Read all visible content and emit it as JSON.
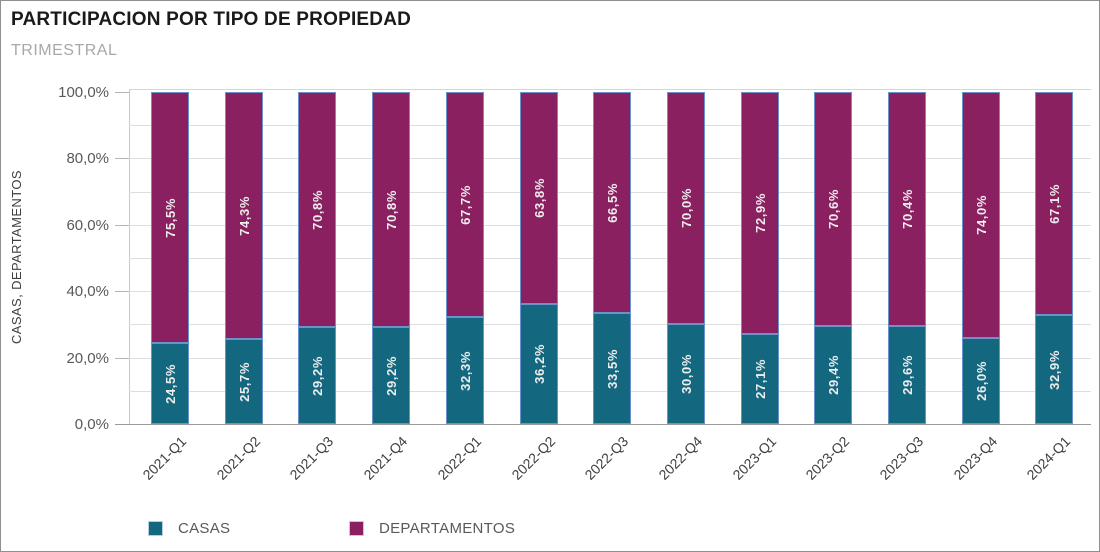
{
  "header": {
    "title": "PARTICIPACION POR TIPO DE PROPIEDAD",
    "subtitle": "TRIMESTRAL"
  },
  "chart_data": {
    "type": "bar",
    "stacked": true,
    "title": "PARTICIPACION POR TIPO DE PROPIEDAD",
    "subtitle": "TRIMESTRAL",
    "xlabel": "",
    "ylabel": "CASAS, DEPARTAMENTOS",
    "ylim": [
      0,
      100
    ],
    "grid": true,
    "legend_position": "bottom",
    "categories": [
      "2021-Q1",
      "2021-Q2",
      "2021-Q3",
      "2021-Q4",
      "2022-Q1",
      "2022-Q2",
      "2022-Q3",
      "2022-Q4",
      "2023-Q1",
      "2023-Q2",
      "2023-Q3",
      "2023-Q4",
      "2024-Q1"
    ],
    "series": [
      {
        "name": "CASAS",
        "color": "#136880",
        "values": [
          24.5,
          25.7,
          29.2,
          29.2,
          32.3,
          36.2,
          33.5,
          30.0,
          27.1,
          29.4,
          29.6,
          26.0,
          32.9
        ],
        "labels": [
          "24,5%",
          "25,7%",
          "29,2%",
          "29,2%",
          "32,3%",
          "36,2%",
          "33,5%",
          "30,0%",
          "27,1%",
          "29,4%",
          "29,6%",
          "26,0%",
          "32,9%"
        ]
      },
      {
        "name": "DEPARTAMENTOS",
        "color": "#8B2061",
        "values": [
          75.5,
          74.3,
          70.8,
          70.8,
          67.7,
          63.8,
          66.5,
          70.0,
          72.9,
          70.6,
          70.4,
          74.0,
          67.1
        ],
        "labels": [
          "75,5%",
          "74,3%",
          "70,8%",
          "70,8%",
          "67,7%",
          "63,8%",
          "66,5%",
          "70,0%",
          "72,9%",
          "70,6%",
          "70,4%",
          "74,0%",
          "67,1%"
        ]
      }
    ],
    "yticks": [
      "0,0%",
      "20,0%",
      "40,0%",
      "60,0%",
      "80,0%",
      "100,0%"
    ],
    "ytick_values": [
      0,
      20,
      40,
      60,
      80,
      100
    ],
    "bar_border_color": "#6A92CB",
    "value_label_color": "#EDEDED",
    "value_label_suffix": "%"
  }
}
